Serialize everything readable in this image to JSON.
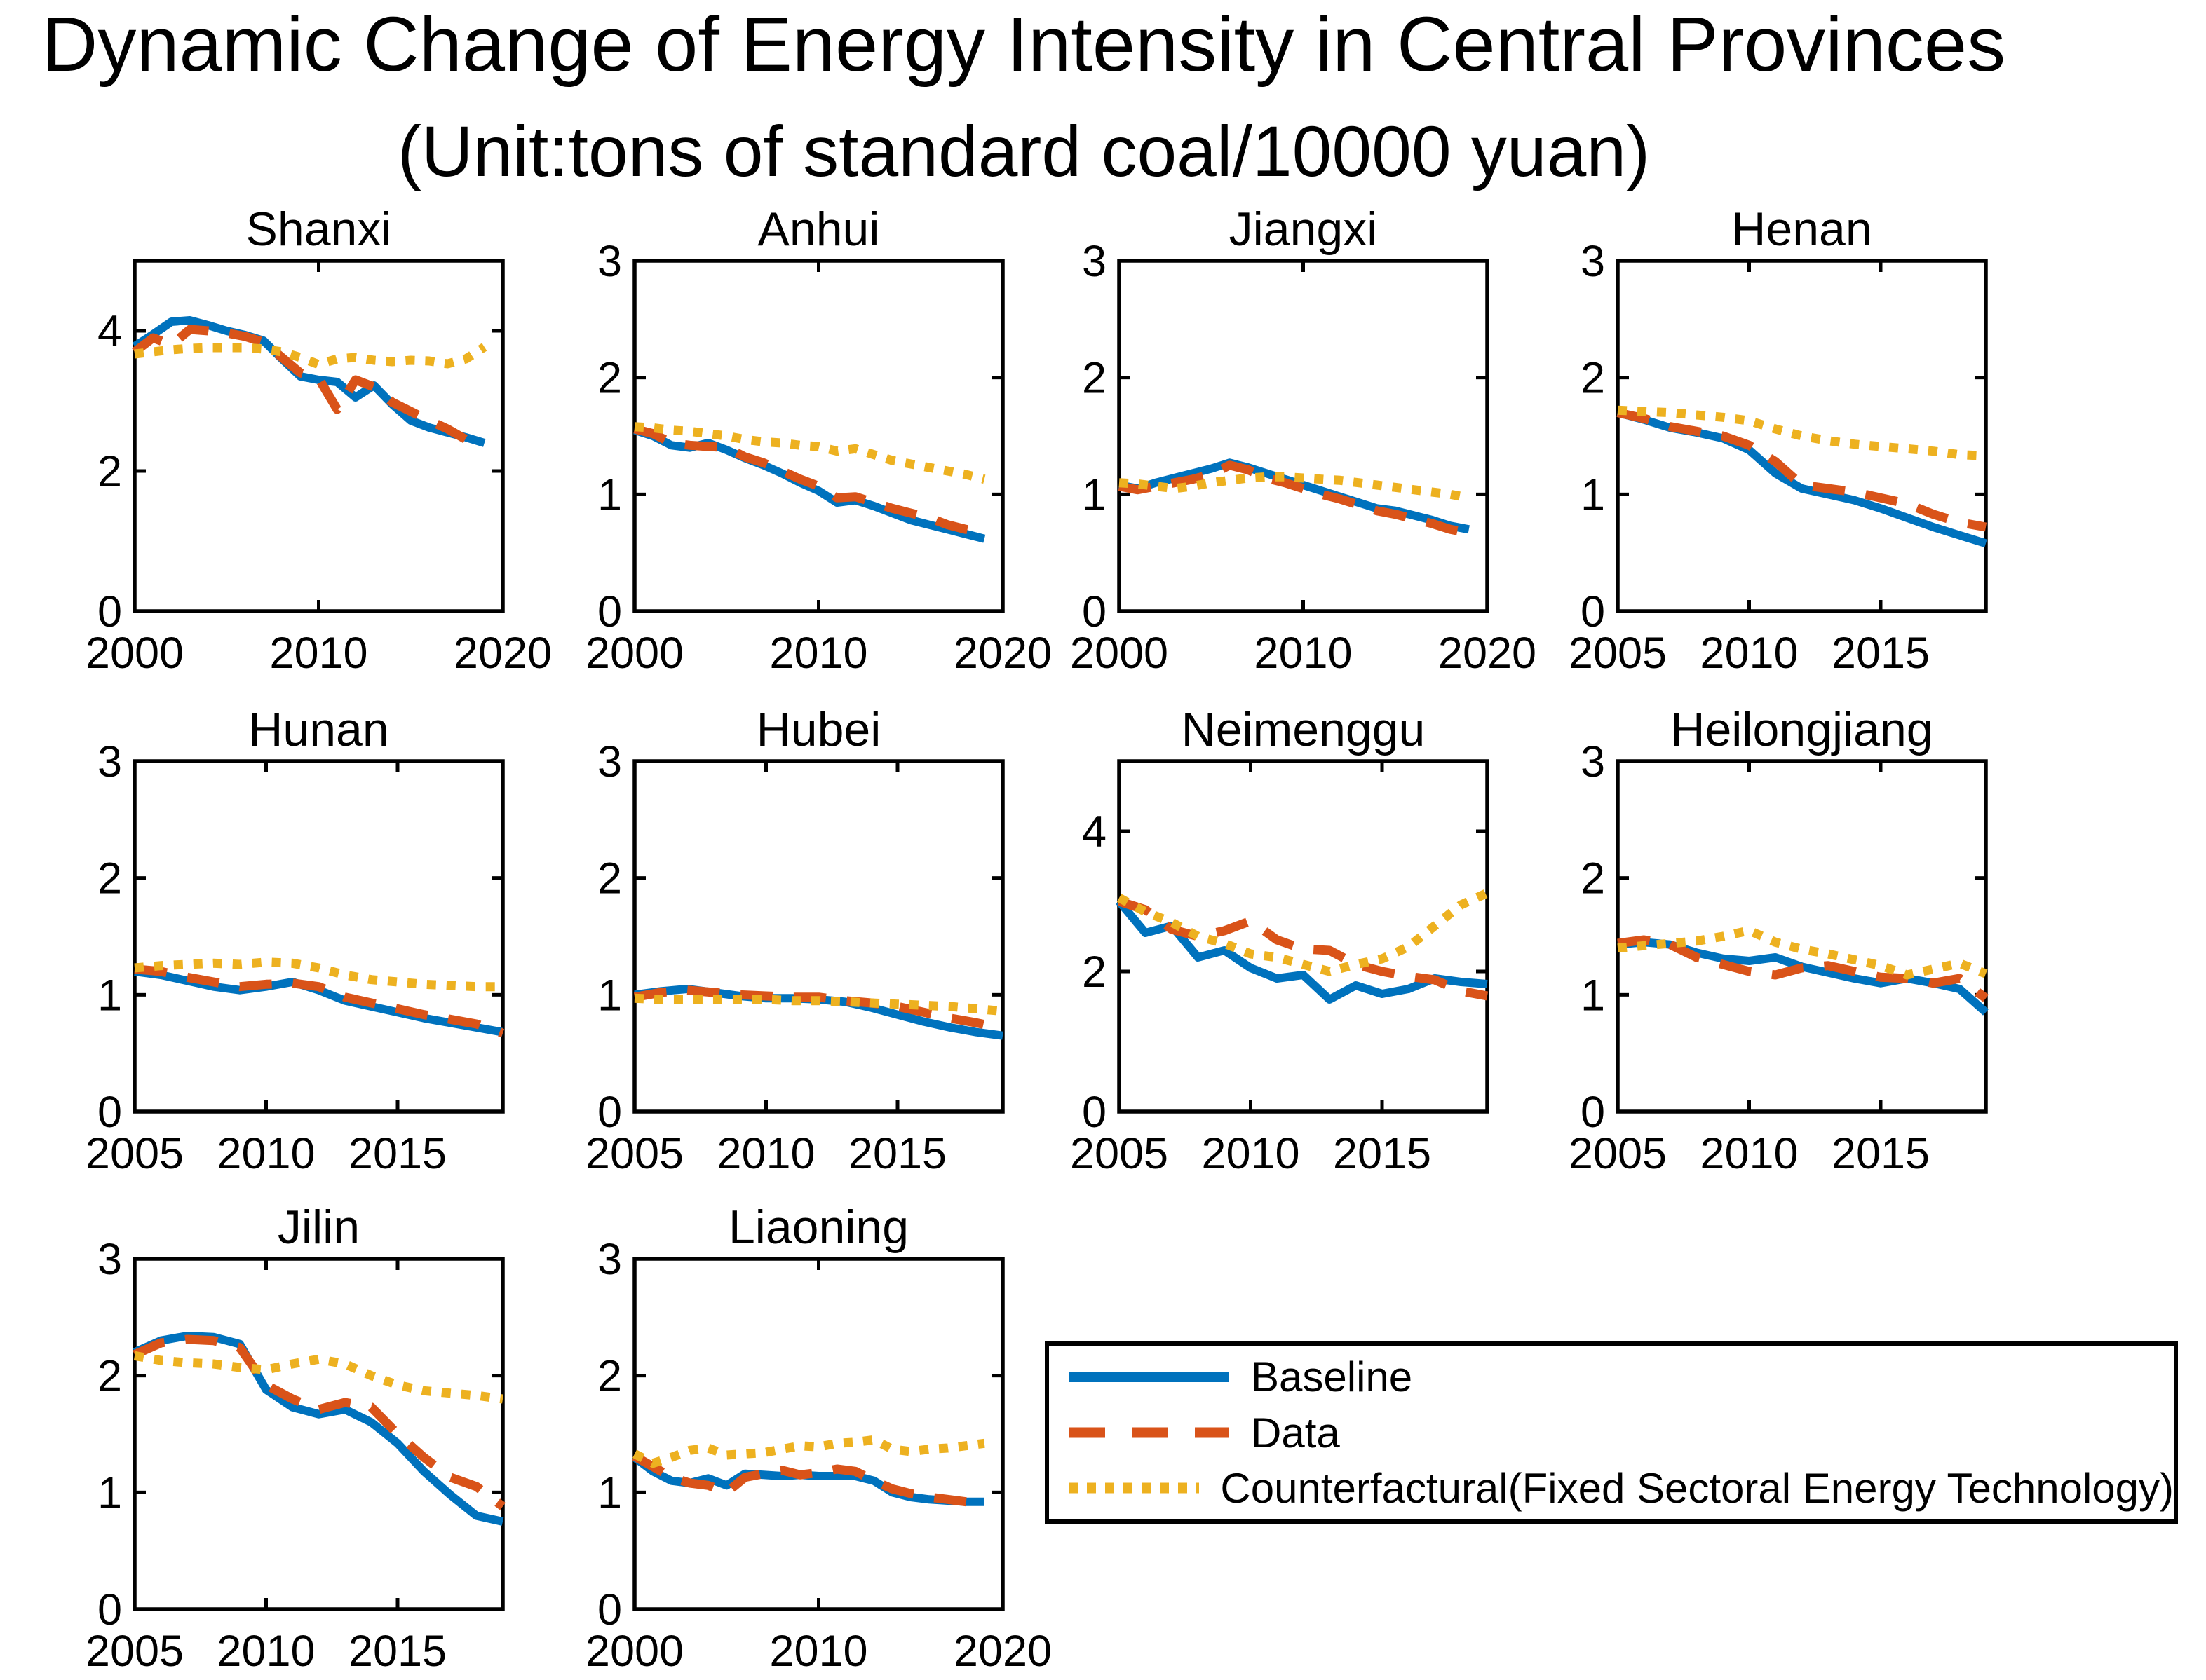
{
  "figure_title": {
    "line1": "Dynamic Change of Energy Intensity in Central Provinces",
    "line2": "(Unit:tons of standard coal/10000 yuan)"
  },
  "colors": {
    "baseline": "#0072BD",
    "data": "#D95319",
    "counterfactual": "#EDB120",
    "axis": "#000000",
    "background": "#FFFFFF"
  },
  "legend": {
    "entries": [
      {
        "id": "baseline",
        "label": "Baseline",
        "style": "solid"
      },
      {
        "id": "data",
        "label": "Data",
        "style": "dashed"
      },
      {
        "id": "counterfactual",
        "label": "Counterfactural(Fixed Sectoral Energy Technology)",
        "style": "dotted"
      }
    ]
  },
  "chart_data": [
    {
      "type": "line",
      "title": "Shanxi",
      "x_start": 2000,
      "x_step": 1,
      "xlim": [
        2000,
        2020
      ],
      "xticks": [
        2000,
        2010,
        2020
      ],
      "ylim": [
        0,
        5
      ],
      "yticks": [
        0,
        2,
        4
      ],
      "series": [
        {
          "name": "Baseline",
          "values": [
            3.78,
            3.95,
            4.13,
            4.15,
            4.08,
            4.0,
            3.94,
            3.86,
            3.6,
            3.35,
            3.3,
            3.27,
            3.05,
            3.22,
            2.95,
            2.72,
            2.62,
            2.55,
            2.48,
            2.4
          ]
        },
        {
          "name": "Data",
          "values": [
            3.7,
            3.9,
            3.8,
            4.02,
            4.0,
            3.97,
            3.92,
            3.84,
            3.62,
            3.4,
            3.32,
            2.88,
            3.3,
            3.2,
            2.98,
            2.85,
            2.72,
            2.6,
            2.45,
            2.35
          ]
        },
        {
          "name": "Counterfactural(Fixed Sectoral Energy Technology)",
          "values": [
            3.67,
            3.7,
            3.73,
            3.75,
            3.76,
            3.76,
            3.76,
            3.74,
            3.7,
            3.62,
            3.52,
            3.6,
            3.62,
            3.58,
            3.56,
            3.58,
            3.57,
            3.53,
            3.6,
            3.77
          ]
        }
      ]
    },
    {
      "type": "line",
      "title": "Anhui",
      "x_start": 2000,
      "x_step": 1,
      "xlim": [
        2000,
        2020
      ],
      "xticks": [
        2000,
        2010,
        2020
      ],
      "ylim": [
        0,
        3
      ],
      "yticks": [
        0,
        1,
        2,
        3
      ],
      "series": [
        {
          "name": "Baseline",
          "values": [
            1.55,
            1.5,
            1.42,
            1.4,
            1.44,
            1.38,
            1.31,
            1.25,
            1.18,
            1.1,
            1.03,
            0.93,
            0.95,
            0.9,
            0.84,
            0.78,
            0.74,
            0.7,
            0.66,
            0.62
          ]
        },
        {
          "name": "Data",
          "values": [
            1.56,
            1.52,
            1.44,
            1.42,
            1.41,
            1.4,
            1.32,
            1.27,
            1.2,
            1.13,
            1.07,
            0.97,
            0.98,
            0.93,
            0.88,
            0.84,
            0.8,
            0.74,
            0.7,
            0.67
          ]
        },
        {
          "name": "Counterfactural(Fixed Sectoral Energy Technology)",
          "values": [
            1.58,
            1.57,
            1.55,
            1.54,
            1.52,
            1.5,
            1.47,
            1.45,
            1.44,
            1.42,
            1.41,
            1.37,
            1.39,
            1.34,
            1.29,
            1.26,
            1.23,
            1.2,
            1.17,
            1.13
          ]
        }
      ]
    },
    {
      "type": "line",
      "title": "Jiangxi",
      "x_start": 2000,
      "x_step": 1,
      "xlim": [
        2000,
        2020
      ],
      "xticks": [
        2000,
        2010,
        2020
      ],
      "ylim": [
        0,
        3
      ],
      "yticks": [
        0,
        1,
        2,
        3
      ],
      "series": [
        {
          "name": "Baseline",
          "values": [
            1.08,
            1.05,
            1.1,
            1.14,
            1.18,
            1.22,
            1.27,
            1.23,
            1.18,
            1.13,
            1.08,
            1.03,
            0.98,
            0.93,
            0.88,
            0.86,
            0.82,
            0.78,
            0.73,
            0.7
          ]
        },
        {
          "name": "Data",
          "values": [
            1.07,
            1.04,
            1.07,
            1.1,
            1.13,
            1.17,
            1.25,
            1.21,
            1.14,
            1.1,
            1.05,
            1.0,
            0.96,
            0.91,
            0.86,
            0.83,
            0.79,
            0.75,
            0.7,
            0.67
          ]
        },
        {
          "name": "Counterfactural(Fixed Sectoral Energy Technology)",
          "values": [
            1.1,
            1.09,
            1.07,
            1.05,
            1.07,
            1.1,
            1.12,
            1.14,
            1.15,
            1.15,
            1.14,
            1.13,
            1.12,
            1.1,
            1.08,
            1.06,
            1.04,
            1.02,
            1.0,
            0.97
          ]
        }
      ]
    },
    {
      "type": "line",
      "title": "Henan",
      "x_start": 2005,
      "x_step": 1,
      "xlim": [
        2005,
        2019
      ],
      "xticks": [
        2005,
        2010,
        2015
      ],
      "ylim": [
        0,
        3
      ],
      "yticks": [
        0,
        1,
        2,
        3
      ],
      "series": [
        {
          "name": "Baseline",
          "values": [
            1.7,
            1.64,
            1.57,
            1.53,
            1.48,
            1.38,
            1.18,
            1.05,
            1.0,
            0.95,
            0.88,
            0.8,
            0.72,
            0.65,
            0.58
          ]
        },
        {
          "name": "Data",
          "values": [
            1.7,
            1.65,
            1.58,
            1.54,
            1.5,
            1.42,
            1.28,
            1.08,
            1.05,
            1.02,
            0.97,
            0.92,
            0.83,
            0.76,
            0.72
          ]
        },
        {
          "name": "Counterfactural(Fixed Sectoral Energy Technology)",
          "values": [
            1.72,
            1.71,
            1.7,
            1.68,
            1.66,
            1.63,
            1.56,
            1.5,
            1.46,
            1.43,
            1.41,
            1.39,
            1.37,
            1.34,
            1.33
          ]
        }
      ]
    },
    {
      "type": "line",
      "title": "Hunan",
      "x_start": 2005,
      "x_step": 1,
      "xlim": [
        2005,
        2019
      ],
      "xticks": [
        2005,
        2010,
        2015
      ],
      "ylim": [
        0,
        3
      ],
      "yticks": [
        0,
        1,
        2,
        3
      ],
      "series": [
        {
          "name": "Baseline",
          "values": [
            1.2,
            1.17,
            1.12,
            1.07,
            1.04,
            1.07,
            1.11,
            1.04,
            0.95,
            0.9,
            0.85,
            0.8,
            0.76,
            0.72,
            0.68
          ]
        },
        {
          "name": "Data",
          "values": [
            1.22,
            1.2,
            1.15,
            1.11,
            1.07,
            1.09,
            1.1,
            1.07,
            0.98,
            0.93,
            0.88,
            0.83,
            0.79,
            0.75,
            0.67
          ]
        },
        {
          "name": "Counterfactural(Fixed Sectoral Energy Technology)",
          "values": [
            1.23,
            1.25,
            1.26,
            1.27,
            1.26,
            1.28,
            1.27,
            1.23,
            1.17,
            1.13,
            1.11,
            1.09,
            1.08,
            1.07,
            1.07
          ]
        }
      ]
    },
    {
      "type": "line",
      "title": "Hubei",
      "x_start": 2005,
      "x_step": 1,
      "xlim": [
        2005,
        2019
      ],
      "xticks": [
        2005,
        2010,
        2015
      ],
      "ylim": [
        0,
        3
      ],
      "yticks": [
        0,
        1,
        2,
        3
      ],
      "series": [
        {
          "name": "Baseline",
          "values": [
            1.0,
            1.03,
            1.05,
            1.02,
            0.99,
            0.97,
            0.97,
            0.96,
            0.94,
            0.89,
            0.83,
            0.77,
            0.72,
            0.68,
            0.65
          ]
        },
        {
          "name": "Data",
          "values": [
            0.98,
            1.02,
            1.04,
            1.02,
            1.0,
            0.99,
            0.98,
            0.98,
            0.95,
            0.93,
            0.9,
            0.85,
            0.8,
            0.76,
            0.71
          ]
        },
        {
          "name": "Counterfactural(Fixed Sectoral Energy Technology)",
          "values": [
            0.97,
            0.96,
            0.96,
            0.96,
            0.96,
            0.96,
            0.95,
            0.95,
            0.94,
            0.93,
            0.92,
            0.91,
            0.9,
            0.88,
            0.86
          ]
        }
      ]
    },
    {
      "type": "line",
      "title": "Neimenggu",
      "x_start": 2005,
      "x_step": 1,
      "xlim": [
        2005,
        2019
      ],
      "xticks": [
        2005,
        2010,
        2015
      ],
      "ylim": [
        0,
        5
      ],
      "yticks": [
        0,
        2,
        4
      ],
      "series": [
        {
          "name": "Baseline",
          "values": [
            3.0,
            2.55,
            2.65,
            2.2,
            2.3,
            2.05,
            1.9,
            1.95,
            1.6,
            1.8,
            1.68,
            1.75,
            1.9,
            1.85,
            1.82
          ]
        },
        {
          "name": "Data",
          "values": [
            3.0,
            2.88,
            2.6,
            2.5,
            2.58,
            2.72,
            2.45,
            2.32,
            2.3,
            2.1,
            2.0,
            1.93,
            1.88,
            1.72,
            1.65
          ]
        },
        {
          "name": "Counterfactural(Fixed Sectoral Energy Technology)",
          "values": [
            3.05,
            2.85,
            2.7,
            2.5,
            2.4,
            2.25,
            2.2,
            2.1,
            2.0,
            2.1,
            2.18,
            2.35,
            2.65,
            2.95,
            3.12
          ]
        }
      ]
    },
    {
      "type": "line",
      "title": "Heilongjiang",
      "x_start": 2005,
      "x_step": 1,
      "xlim": [
        2005,
        2019
      ],
      "xticks": [
        2005,
        2010,
        2015
      ],
      "ylim": [
        0,
        3
      ],
      "yticks": [
        0,
        1,
        2,
        3
      ],
      "series": [
        {
          "name": "Baseline",
          "values": [
            1.43,
            1.45,
            1.43,
            1.36,
            1.31,
            1.29,
            1.32,
            1.24,
            1.19,
            1.14,
            1.1,
            1.14,
            1.1,
            1.05,
            0.85
          ]
        },
        {
          "name": "Data",
          "values": [
            1.44,
            1.47,
            1.43,
            1.32,
            1.26,
            1.2,
            1.17,
            1.23,
            1.25,
            1.2,
            1.15,
            1.14,
            1.1,
            1.14,
            0.97
          ]
        },
        {
          "name": "Counterfactural(Fixed Sectoral Energy Technology)",
          "values": [
            1.4,
            1.42,
            1.44,
            1.46,
            1.5,
            1.55,
            1.45,
            1.39,
            1.35,
            1.3,
            1.25,
            1.17,
            1.22,
            1.27,
            1.18
          ]
        }
      ]
    },
    {
      "type": "line",
      "title": "Jilin",
      "x_start": 2005,
      "x_step": 1,
      "xlim": [
        2005,
        2019
      ],
      "xticks": [
        2005,
        2010,
        2015
      ],
      "ylim": [
        0,
        3
      ],
      "yticks": [
        0,
        1,
        2,
        3
      ],
      "series": [
        {
          "name": "Baseline",
          "values": [
            2.2,
            2.3,
            2.34,
            2.33,
            2.27,
            1.88,
            1.73,
            1.67,
            1.71,
            1.6,
            1.42,
            1.18,
            0.98,
            0.8,
            0.75
          ]
        },
        {
          "name": "Data",
          "values": [
            2.18,
            2.28,
            2.31,
            2.3,
            2.24,
            1.92,
            1.8,
            1.71,
            1.77,
            1.73,
            1.5,
            1.3,
            1.13,
            1.05,
            0.88
          ]
        },
        {
          "name": "Counterfactural(Fixed Sectoral Energy Technology)",
          "values": [
            2.17,
            2.13,
            2.11,
            2.1,
            2.07,
            2.05,
            2.1,
            2.14,
            2.1,
            2.0,
            1.92,
            1.87,
            1.85,
            1.83,
            1.8
          ]
        }
      ]
    },
    {
      "type": "line",
      "title": "Liaoning",
      "x_start": 2000,
      "x_step": 1,
      "xlim": [
        2000,
        2020
      ],
      "xticks": [
        2000,
        2010,
        2020
      ],
      "ylim": [
        0,
        3
      ],
      "yticks": [
        0,
        1,
        2,
        3
      ],
      "series": [
        {
          "name": "Baseline",
          "values": [
            1.3,
            1.18,
            1.1,
            1.08,
            1.12,
            1.06,
            1.16,
            1.15,
            1.14,
            1.15,
            1.14,
            1.14,
            1.14,
            1.1,
            1.0,
            0.96,
            0.94,
            0.93,
            0.92,
            0.92
          ]
        },
        {
          "name": "Data",
          "values": [
            1.31,
            1.22,
            1.13,
            1.08,
            1.06,
            1.0,
            1.13,
            1.16,
            1.19,
            1.15,
            1.17,
            1.2,
            1.18,
            1.1,
            1.03,
            0.99,
            0.96,
            0.94,
            0.92,
            0.9
          ]
        },
        {
          "name": "Counterfactural(Fixed Sectoral Energy Technology)",
          "values": [
            1.33,
            1.25,
            1.3,
            1.36,
            1.38,
            1.32,
            1.33,
            1.34,
            1.37,
            1.4,
            1.39,
            1.42,
            1.43,
            1.45,
            1.37,
            1.35,
            1.37,
            1.38,
            1.4,
            1.42
          ]
        }
      ]
    }
  ]
}
